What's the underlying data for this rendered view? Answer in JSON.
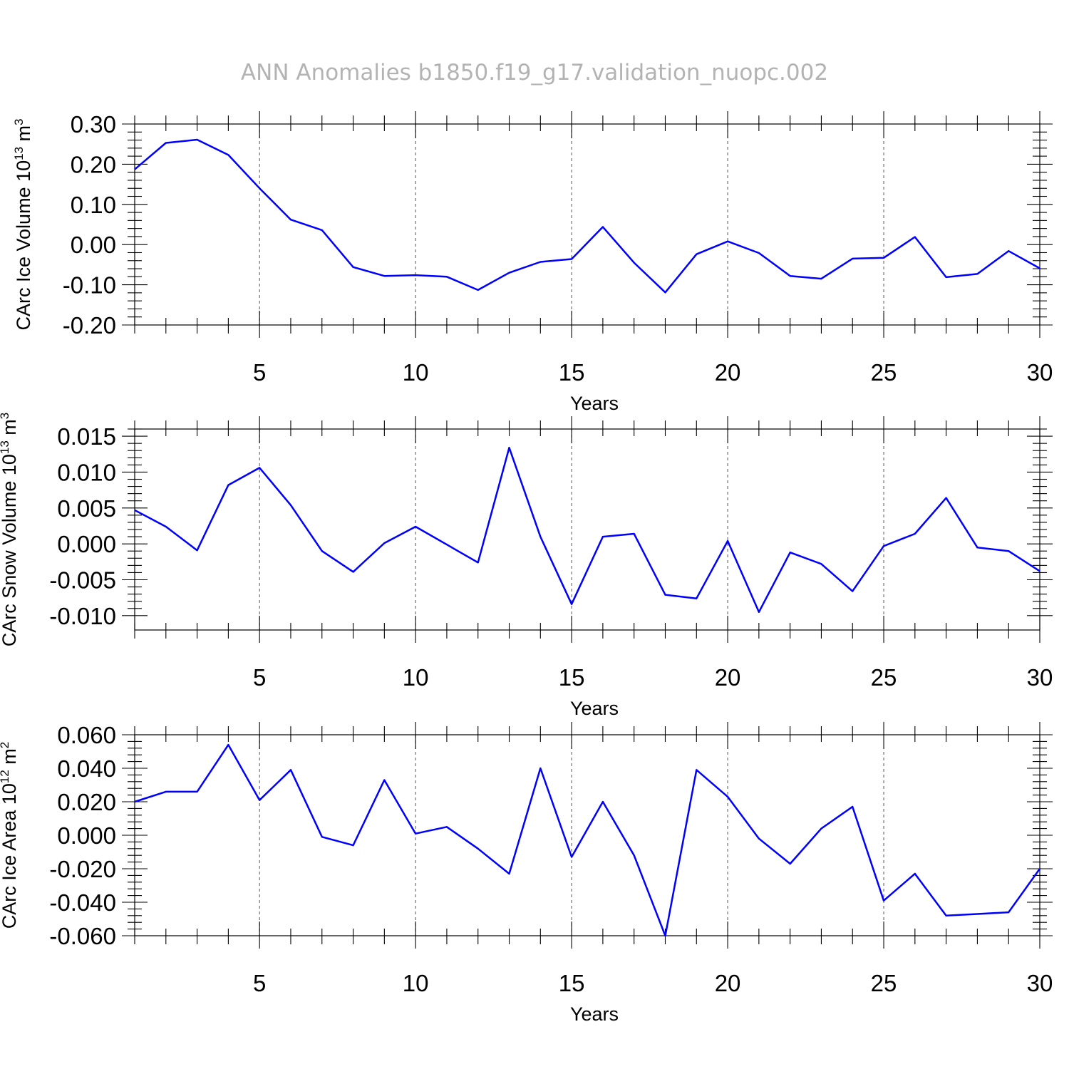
{
  "title": "ANN Anomalies b1850.f19_g17.validation_nuopc.002",
  "chart_data": [
    {
      "type": "line",
      "xlabel": "Years",
      "ylabel_text": "CArc Ice Volume 10",
      "ylabel_exp": "13",
      "ylabel_unit": " m",
      "ylabel_unit_exp": "3",
      "xlim": [
        1,
        30
      ],
      "ylim": [
        -0.2,
        0.3
      ],
      "xticks": [
        5,
        10,
        15,
        20,
        25,
        30
      ],
      "xtick_labels": [
        "5",
        "10",
        "15",
        "20",
        "25",
        "30"
      ],
      "yticks": [
        -0.2,
        -0.1,
        0.0,
        0.1,
        0.2,
        0.3
      ],
      "ytick_labels": [
        "-0.20",
        "-0.10",
        "0.00",
        "0.10",
        "0.20",
        "0.30"
      ],
      "grid": "dashed vertical at major x ticks",
      "color": "#0000ff",
      "x": [
        1,
        2,
        3,
        4,
        5,
        6,
        7,
        8,
        9,
        10,
        11,
        12,
        13,
        14,
        15,
        16,
        17,
        18,
        19,
        20,
        21,
        22,
        23,
        24,
        25,
        26,
        27,
        28,
        29,
        30
      ],
      "y": [
        0.187,
        0.253,
        0.261,
        0.223,
        0.14,
        0.062,
        0.036,
        -0.056,
        -0.078,
        -0.076,
        -0.08,
        -0.113,
        -0.07,
        -0.043,
        -0.036,
        0.044,
        -0.045,
        -0.119,
        -0.024,
        0.008,
        -0.021,
        -0.078,
        -0.085,
        -0.035,
        -0.033,
        0.019,
        -0.081,
        -0.073,
        -0.016,
        -0.059
      ]
    },
    {
      "type": "line",
      "xlabel": "Years",
      "ylabel_text": "CArc Snow Volume 10",
      "ylabel_exp": "13",
      "ylabel_unit": " m",
      "ylabel_unit_exp": "3",
      "xlim": [
        1,
        30
      ],
      "ylim": [
        -0.012,
        0.016
      ],
      "xticks": [
        5,
        10,
        15,
        20,
        25,
        30
      ],
      "xtick_labels": [
        "5",
        "10",
        "15",
        "20",
        "25",
        "30"
      ],
      "yticks": [
        -0.01,
        -0.005,
        0.0,
        0.005,
        0.01,
        0.015
      ],
      "ytick_labels": [
        "-0.010",
        "-0.005",
        "0.000",
        "0.005",
        "0.010",
        "0.015"
      ],
      "grid": "dashed vertical at major x ticks",
      "color": "#0000ff",
      "x": [
        1,
        2,
        3,
        4,
        5,
        6,
        7,
        8,
        9,
        10,
        11,
        12,
        13,
        14,
        15,
        16,
        17,
        18,
        19,
        20,
        21,
        22,
        23,
        24,
        25,
        26,
        27,
        28,
        29,
        30
      ],
      "y": [
        0.0047,
        0.0024,
        -0.0009,
        0.0082,
        0.0106,
        0.0054,
        -0.001,
        -0.0039,
        0.0001,
        0.0024,
        -0.0001,
        -0.0026,
        0.0134,
        0.001,
        -0.0084,
        0.001,
        0.0014,
        -0.0071,
        -0.0076,
        0.0004,
        -0.0095,
        -0.0012,
        -0.0028,
        -0.0066,
        -0.0003,
        0.0014,
        0.0064,
        -0.0005,
        -0.001,
        -0.0038
      ]
    },
    {
      "type": "line",
      "xlabel": "Years",
      "ylabel_text": "CArc Ice Area 10",
      "ylabel_exp": "12",
      "ylabel_unit": " m",
      "ylabel_unit_exp": "2",
      "xlim": [
        1,
        30
      ],
      "ylim": [
        -0.06,
        0.06
      ],
      "xticks": [
        5,
        10,
        15,
        20,
        25,
        30
      ],
      "xtick_labels": [
        "5",
        "10",
        "15",
        "20",
        "25",
        "30"
      ],
      "yticks": [
        -0.06,
        -0.04,
        -0.02,
        0.0,
        0.02,
        0.04,
        0.06
      ],
      "ytick_labels": [
        "-0.060",
        "-0.040",
        "-0.020",
        "0.000",
        "0.020",
        "0.040",
        "0.060"
      ],
      "grid": "dashed vertical at major x ticks",
      "color": "#0000ff",
      "x": [
        1,
        2,
        3,
        4,
        5,
        6,
        7,
        8,
        9,
        10,
        11,
        12,
        13,
        14,
        15,
        16,
        17,
        18,
        19,
        20,
        21,
        22,
        23,
        24,
        25,
        26,
        27,
        28,
        29,
        30
      ],
      "y": [
        0.02,
        0.026,
        0.026,
        0.054,
        0.021,
        0.039,
        -0.001,
        -0.006,
        0.033,
        0.001,
        0.005,
        -0.008,
        -0.023,
        0.04,
        -0.013,
        0.02,
        -0.012,
        -0.06,
        0.039,
        0.023,
        -0.002,
        -0.017,
        0.004,
        0.017,
        -0.039,
        -0.023,
        -0.048,
        -0.047,
        -0.046,
        -0.02
      ]
    }
  ]
}
